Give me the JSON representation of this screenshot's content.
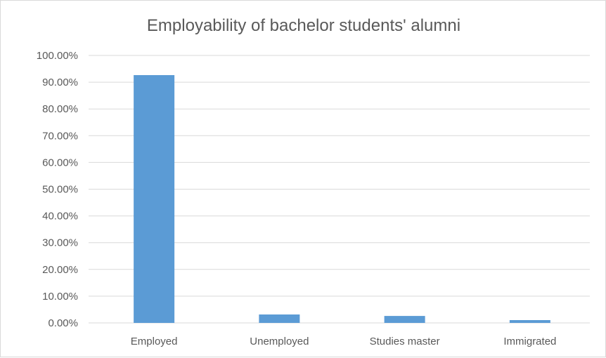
{
  "chart_data": {
    "type": "bar",
    "title": "Employability of bachelor students' alumni",
    "categories": [
      "Employed",
      "Unemployed",
      "Studies master",
      "Immigrated"
    ],
    "values": [
      92.65,
      3.15,
      2.6,
      1.05
    ],
    "ylim": [
      0,
      100
    ],
    "yticks": [
      "0.00%",
      "10.00%",
      "20.00%",
      "30.00%",
      "40.00%",
      "50.00%",
      "60.00%",
      "70.00%",
      "80.00%",
      "90.00%",
      "100.00%"
    ],
    "grid": true,
    "legend": "none",
    "bar_color": "#5b9bd5",
    "grid_color": "#d9d9d9"
  }
}
